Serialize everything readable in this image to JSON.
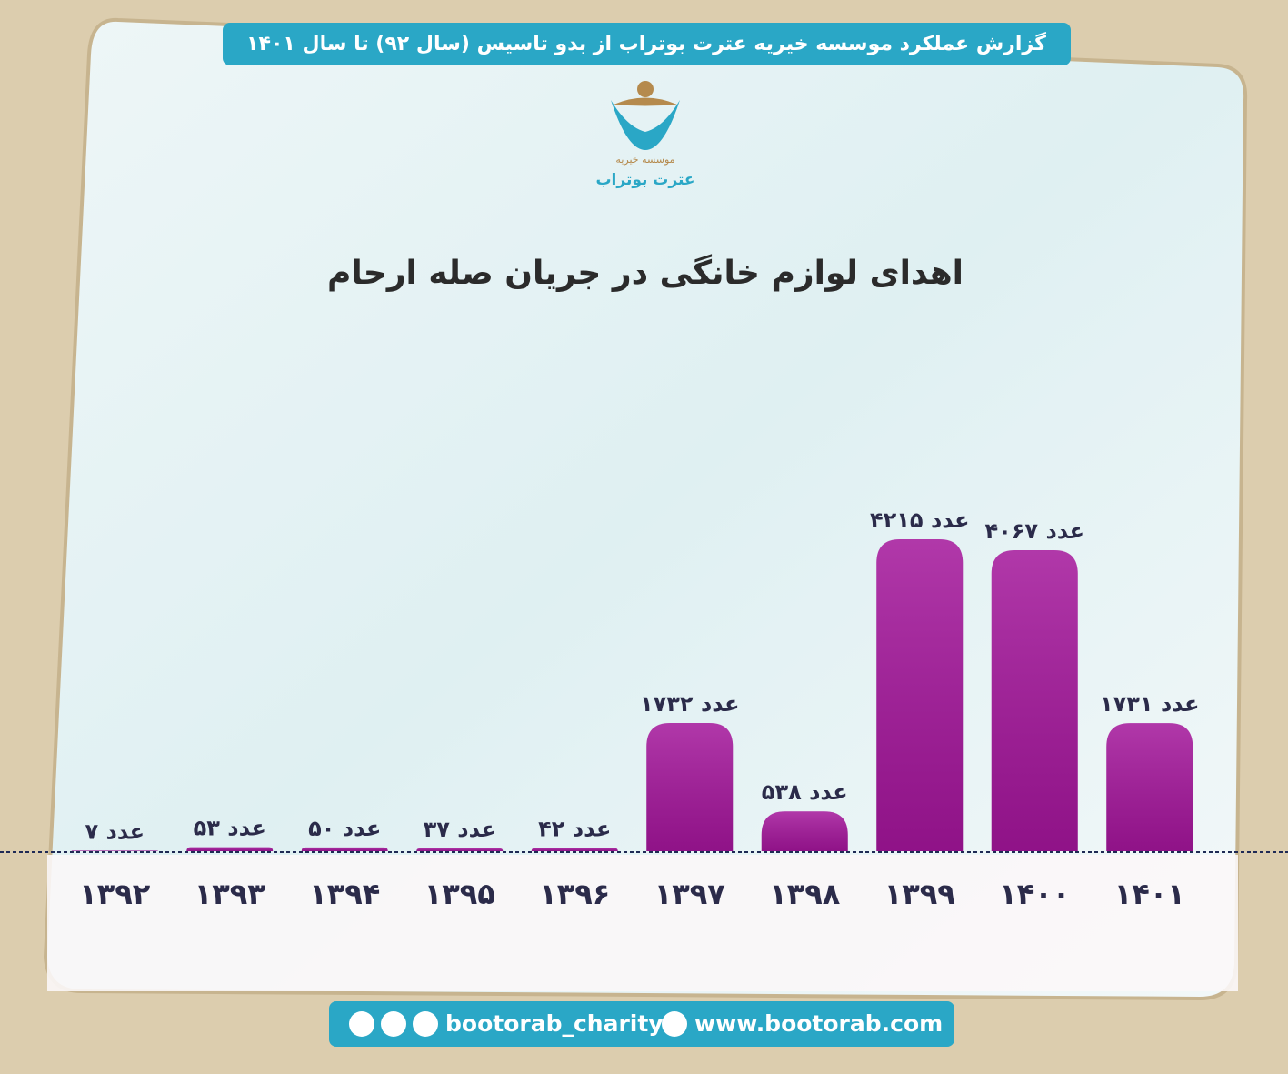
{
  "header": "گزارش عملکرد موسسه خیریه عترت بوتراب از بدو تاسیس (سال ۹۲) تا سال ۱۴۰۱",
  "logo": {
    "line1": "موسسه خیریه",
    "line2": "عترت بوتراب"
  },
  "footer": {
    "social": "bootorab_charity",
    "website": "www.bootorab.com"
  },
  "chart_data": {
    "type": "bar",
    "title": "اهدای لوازم خانگی در جریان صله ارحام",
    "categories": [
      "۱۳۹۲",
      "۱۳۹۳",
      "۱۳۹۴",
      "۱۳۹۵",
      "۱۳۹۶",
      "۱۳۹۷",
      "۱۳۹۸",
      "۱۳۹۹",
      "۱۴۰۰",
      "۱۴۰۱"
    ],
    "values": [
      7,
      53,
      50,
      37,
      42,
      1732,
      538,
      4215,
      4067,
      1731
    ],
    "value_labels": [
      "۷ عدد",
      "۵۳ عدد",
      "۵۰ عدد",
      "۳۷ عدد",
      "۴۲ عدد",
      "۱۷۳۲ عدد",
      "۵۳۸ عدد",
      "۴۲۱۵ عدد",
      "۴۰۶۷ عدد",
      "۱۷۳۱ عدد"
    ],
    "color": "#a3159a"
  }
}
